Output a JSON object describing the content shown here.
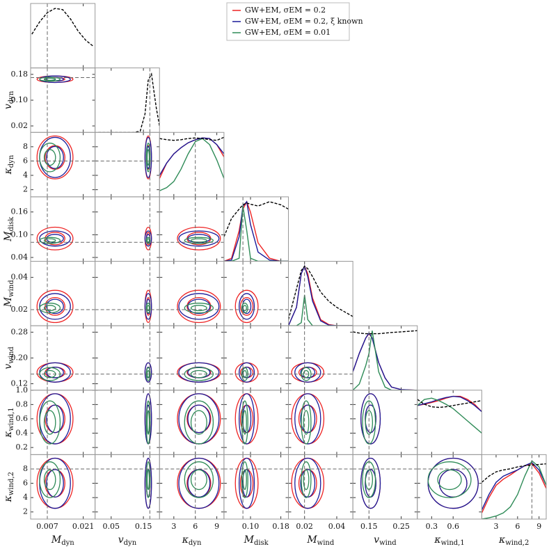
{
  "chart_data": {
    "type": "corner",
    "density_ylim": [
      0,
      1.05
    ],
    "parameters": [
      {
        "label": "M",
        "sub": "dyn",
        "xlim": [
          0.0005,
          0.0256
        ],
        "xticks": [
          0.007,
          0.021
        ],
        "yticks": [],
        "truth": 0.007,
        "density_x": [
          0.001,
          0.004,
          0.007,
          0.01,
          0.013,
          0.016,
          0.019,
          0.022,
          0.025
        ],
        "prior": [
          0.55,
          0.75,
          0.9,
          0.97,
          0.95,
          0.8,
          0.6,
          0.45,
          0.35
        ]
      },
      {
        "label": "v",
        "sub": "dyn",
        "xlim": [
          0.0,
          0.2
        ],
        "xticks": [
          0.05,
          0.15
        ],
        "yticks": [
          0.02,
          {
            "value": 0.1,
            "label": "0.10"
          },
          0.18
        ],
        "truth": 0.17,
        "density_x": [
          0.01,
          0.05,
          0.09,
          0.12,
          0.14,
          0.155,
          0.165,
          0.175,
          0.19,
          0.2
        ],
        "prior": [
          0,
          0,
          0,
          0,
          0.02,
          0.3,
          0.85,
          0.95,
          0.4,
          0.1
        ]
      },
      {
        "label": "κ",
        "sub": "dyn",
        "xlim": [
          1,
          10
        ],
        "xticks": [
          3,
          6,
          9
        ],
        "yticks": [
          2,
          4,
          6,
          8
        ],
        "truth": 6,
        "density_x": [
          1,
          2,
          3,
          4,
          5,
          6,
          7,
          8,
          9,
          10
        ],
        "prior": [
          0.95,
          0.93,
          0.92,
          0.93,
          0.95,
          0.96,
          0.95,
          0.93,
          0.92,
          0.97
        ]
      },
      {
        "label": "M",
        "sub": "disk",
        "xlim": [
          0.03,
          0.2
        ],
        "xticks": [
          {
            "value": 0.1,
            "label": "0.10"
          },
          0.18
        ],
        "yticks": [
          0.04,
          {
            "value": 0.1,
            "label": "0.10"
          },
          0.16
        ],
        "truth": 0.08,
        "density_x": [
          0.03,
          0.05,
          0.07,
          0.08,
          0.09,
          0.1,
          0.12,
          0.15,
          0.18,
          0.2
        ],
        "prior": [
          0.4,
          0.7,
          0.85,
          0.92,
          0.95,
          0.93,
          0.9,
          0.97,
          0.92,
          0.85
        ]
      },
      {
        "label": "M",
        "sub": "wind",
        "xlim": [
          0.01,
          0.05
        ],
        "xticks": [
          0.02,
          0.04
        ],
        "yticks": [
          0.02,
          0.04
        ],
        "truth": 0.02,
        "density_x": [
          0.01,
          0.015,
          0.018,
          0.02,
          0.022,
          0.025,
          0.03,
          0.035,
          0.04,
          0.05
        ],
        "prior": [
          0.1,
          0.6,
          0.9,
          0.97,
          0.93,
          0.8,
          0.55,
          0.4,
          0.3,
          0.15
        ]
      },
      {
        "label": "v",
        "sub": "wind",
        "xlim": [
          0.1,
          0.3
        ],
        "xticks": [
          0.15,
          0.25
        ],
        "yticks": [
          0.12,
          {
            "value": 0.2,
            "label": "0.20"
          },
          0.28
        ],
        "truth": 0.15,
        "density_x": [
          0.1,
          0.12,
          0.14,
          0.15,
          0.16,
          0.18,
          0.2,
          0.22,
          0.25,
          0.3
        ],
        "prior": [
          0.95,
          0.93,
          0.92,
          0.92,
          0.92,
          0.92,
          0.93,
          0.94,
          0.95,
          0.97
        ]
      },
      {
        "label": "κ",
        "sub": "wind,1",
        "xlim": [
          0.1,
          1.0
        ],
        "xticks": [
          0.3,
          0.6
        ],
        "yticks": [
          0.2,
          0.4,
          0.6,
          0.8,
          {
            "value": 1,
            "label": "1.0"
          }
        ],
        "truth": null,
        "density_x": [
          0.1,
          0.2,
          0.3,
          0.4,
          0.5,
          0.6,
          0.7,
          0.8,
          0.9,
          1.0
        ],
        "prior": [
          0.9,
          0.82,
          0.78,
          0.77,
          0.78,
          0.8,
          0.82,
          0.84,
          0.86,
          0.88
        ]
      },
      {
        "label": "κ",
        "sub": "wind,2",
        "xlim": [
          1,
          10
        ],
        "xticks": [
          3,
          6,
          9
        ],
        "yticks": [
          2,
          4,
          6,
          8
        ],
        "truth": 8,
        "density_x": [
          1,
          2,
          3,
          4,
          5,
          6,
          7,
          8,
          9,
          10
        ],
        "prior": [
          0.6,
          0.7,
          0.77,
          0.8,
          0.82,
          0.85,
          0.87,
          0.88,
          0.89,
          0.9
        ]
      }
    ],
    "series": [
      {
        "name": "GW+EM, σEM = 0.2",
        "color": "#ee2222",
        "centers": [
          0.01,
          0.165,
          6.5,
          0.09,
          0.022,
          0.155,
          0.6,
          6
        ],
        "spreads": [
          0.007,
          0.01,
          3,
          0.03,
          0.01,
          0.03,
          0.35,
          3.5
        ],
        "densities": [
          null,
          null,
          [
            0.3,
            0.55,
            0.7,
            0.8,
            0.88,
            0.93,
            0.96,
            0.95,
            0.85,
            0.65
          ],
          [
            0,
            0.05,
            0.5,
            0.85,
            0.97,
            0.8,
            0.3,
            0.05,
            0,
            0
          ],
          [
            0,
            0.3,
            0.85,
            0.97,
            0.85,
            0.45,
            0.1,
            0.02,
            0,
            0
          ],
          [
            0.3,
            0.6,
            0.85,
            0.92,
            0.85,
            0.45,
            0.2,
            0.05,
            0.01,
            0
          ],
          [
            0.8,
            0.82,
            0.85,
            0.88,
            0.92,
            0.95,
            0.95,
            0.9,
            0.82,
            0.7
          ],
          [
            0.1,
            0.35,
            0.55,
            0.65,
            0.72,
            0.8,
            0.87,
            0.9,
            0.75,
            0.5
          ]
        ]
      },
      {
        "name": "GW+EM, σEM = 0.2, ξ known",
        "color": "#1a1a99",
        "centers": [
          0.01,
          0.165,
          6.5,
          0.09,
          0.022,
          0.155,
          0.6,
          6
        ],
        "spreads": [
          0.006,
          0.01,
          2.8,
          0.02,
          0.008,
          0.03,
          0.35,
          3.5
        ],
        "densities": [
          null,
          null,
          [
            0.35,
            0.55,
            0.7,
            0.8,
            0.88,
            0.93,
            0.96,
            0.95,
            0.85,
            0.7
          ],
          [
            0,
            0.02,
            0.4,
            0.9,
            0.97,
            0.6,
            0.15,
            0.02,
            0,
            0
          ],
          [
            0,
            0.3,
            0.85,
            0.97,
            0.8,
            0.4,
            0.08,
            0.01,
            0,
            0
          ],
          [
            0.3,
            0.6,
            0.85,
            0.93,
            0.85,
            0.45,
            0.2,
            0.05,
            0.01,
            0
          ],
          [
            0.8,
            0.83,
            0.86,
            0.9,
            0.93,
            0.95,
            0.94,
            0.88,
            0.8,
            0.7
          ],
          [
            0.15,
            0.4,
            0.6,
            0.7,
            0.75,
            0.8,
            0.87,
            0.92,
            0.8,
            0.55
          ]
        ]
      },
      {
        "name": "GW+EM, σEM = 0.01",
        "color": "#2e8b57",
        "centers": [
          0.008,
          0.165,
          6.5,
          0.085,
          0.021,
          0.15,
          0.55,
          6.5
        ],
        "spreads": [
          0.004,
          0.006,
          2,
          0.008,
          0.003,
          0.02,
          0.3,
          2.5
        ],
        "densities": [
          null,
          null,
          [
            0.1,
            0.15,
            0.25,
            0.45,
            0.7,
            0.9,
            0.95,
            0.85,
            0.6,
            0.3
          ],
          [
            0,
            0,
            0.05,
            0.9,
            0.5,
            0.05,
            0,
            0,
            0,
            0
          ],
          [
            0,
            0,
            0.05,
            0.5,
            0.1,
            0,
            0,
            0,
            0,
            0
          ],
          [
            0,
            0.1,
            0.4,
            0.6,
            0.97,
            0.3,
            0.05,
            0,
            0,
            0
          ],
          [
            0.8,
            0.9,
            0.92,
            0.88,
            0.82,
            0.75,
            0.65,
            0.55,
            0.45,
            0.35
          ],
          [
            0,
            0.02,
            0.05,
            0.1,
            0.2,
            0.4,
            0.7,
            0.95,
            0.85,
            0.55
          ]
        ]
      }
    ]
  }
}
